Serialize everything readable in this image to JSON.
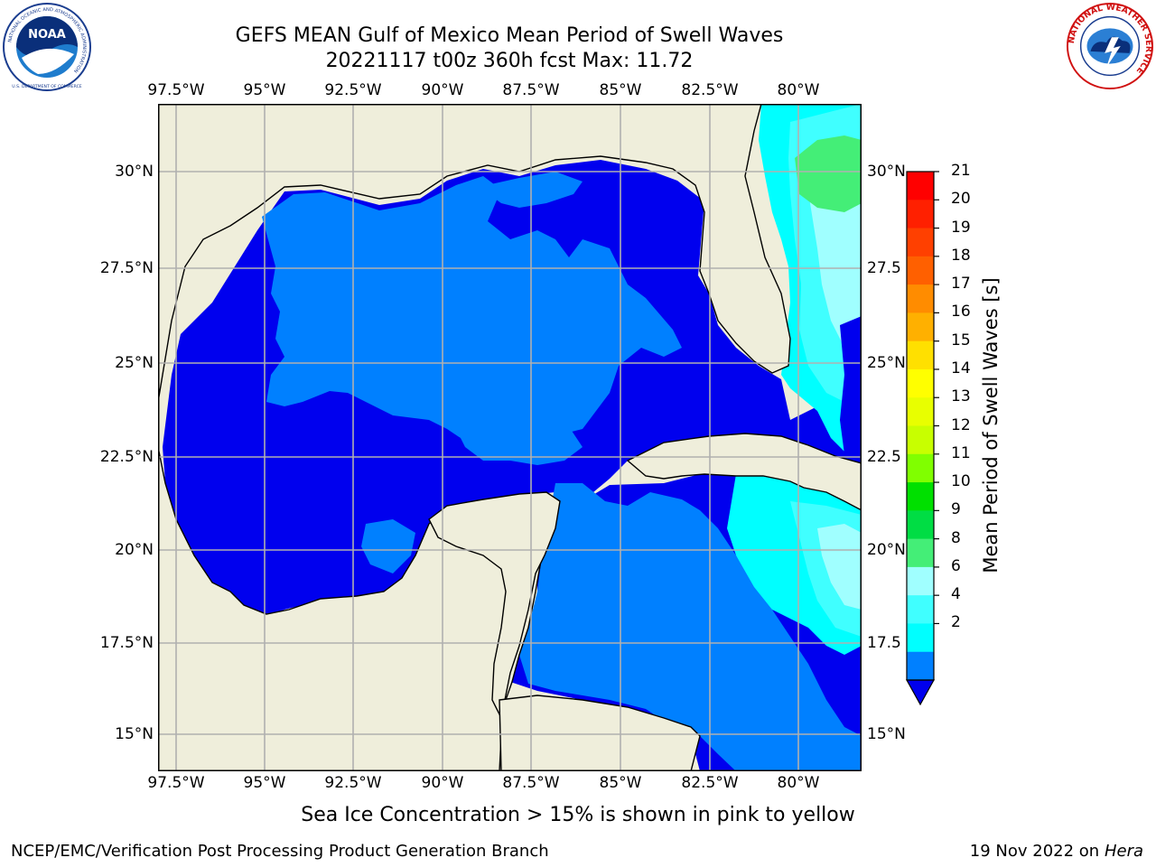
{
  "title_line1": "GEFS MEAN Gulf of Mexico Mean Period of Swell Waves",
  "title_line2": "20221117 t00z 360h fcst   Max: 11.72",
  "logos": {
    "left": "noaa-logo",
    "left_ring_text": "NATIONAL OCEANIC AND ATMOSPHERIC ADMINISTRATION",
    "left_center_text": "NOAA",
    "left_bottom_text": "U.S. DEPARTMENT OF COMMERCE",
    "right": "national-weather-service-logo",
    "right_ring_text": "NATIONAL WEATHER SERVICE"
  },
  "map": {
    "lon_labels_top": [
      "97.5°W",
      "95°W",
      "92.5°W",
      "90°W",
      "87.5°W",
      "85°W",
      "82.5°W",
      "80°W"
    ],
    "lon_labels_bottom": [
      "97.5°W",
      "95°W",
      "92.5°W",
      "90°W",
      "87.5°W",
      "85°W",
      "82.5°W",
      "80°W"
    ],
    "lat_labels_left": [
      "30°N",
      "27.5°N",
      "25°N",
      "22.5°N",
      "20°N",
      "17.5°N",
      "15°N"
    ],
    "lat_labels_right": [
      "30°N",
      "27.5",
      "25°N",
      "22.5",
      "20°N",
      "17.5",
      "15°N"
    ],
    "colors": {
      "land": "#efeedb",
      "ocean_2_4": "#0080ff",
      "ocean_lt2": "#0000ee",
      "ocean_4_6": "#00ffff",
      "ocean_6_8": "#40ffff",
      "ocean_8_9": "#a0ffff",
      "ocean_9_10": "#44ee77",
      "ocean_10_11": "#00e000",
      "grid": "#b0b0b0"
    }
  },
  "colorbar": {
    "label": "Mean Period of Swell Waves [s]",
    "ticks": [
      "21",
      "20",
      "19",
      "18",
      "17",
      "16",
      "15",
      "14",
      "13",
      "12",
      "11",
      "10",
      "9",
      "8",
      "6",
      "4",
      "2"
    ],
    "colors": [
      "#ff0000",
      "#ff2000",
      "#ff4000",
      "#ff6000",
      "#ff8c00",
      "#ffb000",
      "#ffe000",
      "#ffff00",
      "#e8ff00",
      "#c8ff00",
      "#80ff00",
      "#00e000",
      "#00dd44",
      "#44ee77",
      "#a0ffff",
      "#40ffff",
      "#00ffff",
      "#0080ff"
    ],
    "extend_color": "#0000ee"
  },
  "footnote": "Sea Ice Concentration > 15% is shown in pink to yellow",
  "footer_left": "NCEP/EMC/Verification Post Processing Product Generation Branch",
  "footer_right_date": "19 Nov 2022 on",
  "footer_right_host": "Hera"
}
